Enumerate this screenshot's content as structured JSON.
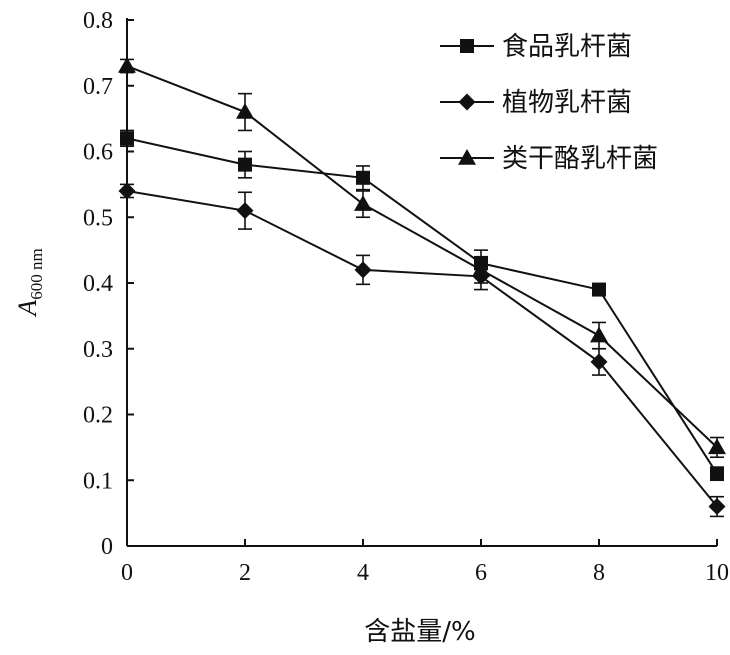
{
  "chart_data": {
    "type": "line",
    "xlabel": "含盐量/%",
    "ylabel": "A600 nm",
    "ylabel_main": "A",
    "ylabel_sub": "600 nm",
    "xlim": [
      0,
      10
    ],
    "ylim": [
      0,
      0.8
    ],
    "x": [
      0,
      2,
      4,
      6,
      8,
      10
    ],
    "x_ticks": [
      "0",
      "2",
      "4",
      "6",
      "8",
      "10"
    ],
    "y_ticks": [
      "0",
      "0.1",
      "0.2",
      "0.3",
      "0.4",
      "0.5",
      "0.6",
      "0.7",
      "0.8"
    ],
    "grid": false,
    "legend_position": "top-right",
    "series": [
      {
        "name": "食品乳杆菌",
        "marker": "square",
        "values": [
          0.62,
          0.58,
          0.56,
          0.43,
          0.39,
          0.11
        ],
        "errors": [
          0.012,
          0.02,
          0.018,
          0.02,
          0.008,
          0.01
        ]
      },
      {
        "name": "植物乳杆菌",
        "marker": "diamond",
        "values": [
          0.54,
          0.51,
          0.42,
          0.41,
          0.28,
          0.06
        ],
        "errors": [
          0.01,
          0.028,
          0.022,
          0.02,
          0.02,
          0.015
        ]
      },
      {
        "name": "类干酪乳杆菌",
        "marker": "triangle",
        "values": [
          0.73,
          0.66,
          0.52,
          0.42,
          0.32,
          0.15
        ],
        "errors": [
          0.01,
          0.028,
          0.02,
          0.02,
          0.02,
          0.015
        ]
      }
    ],
    "colors": {
      "line": "#111111",
      "marker": "#111111"
    }
  }
}
